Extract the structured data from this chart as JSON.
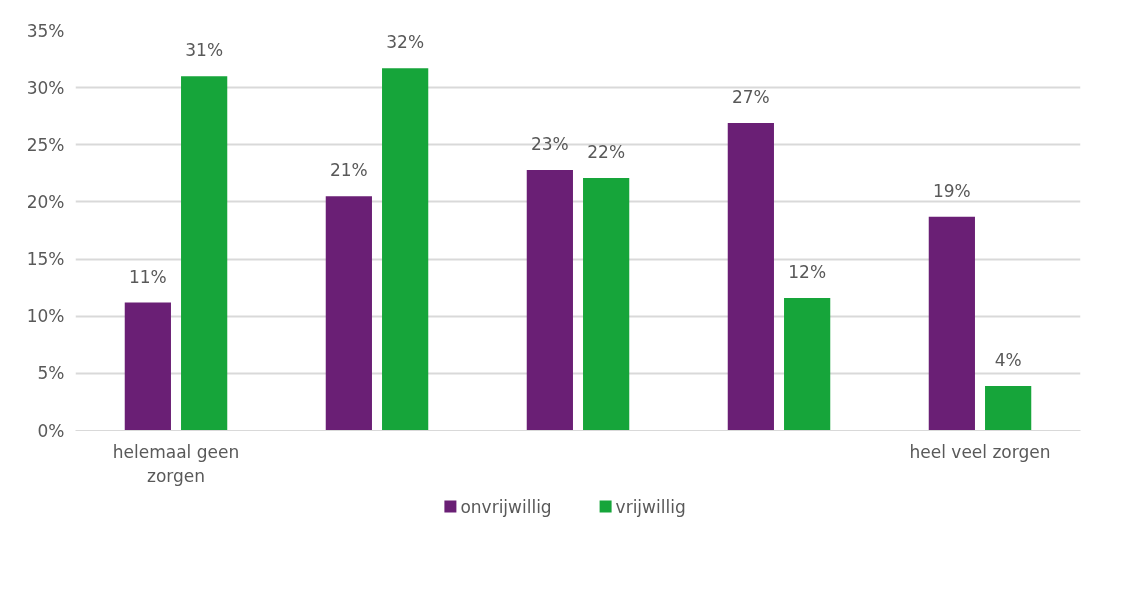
{
  "chart_data": {
    "type": "bar",
    "categories": [
      "helemaal geen zorgen",
      null,
      null,
      null,
      "heel veel zorgen"
    ],
    "series": [
      {
        "name": "onvrijwillig",
        "color": "#6a1f75",
        "values": [
          11.2,
          20.5,
          22.8,
          26.9,
          18.7
        ],
        "value_labels": [
          "11%",
          "21%",
          "23%",
          "27%",
          "19%"
        ]
      },
      {
        "name": "vrijwillig",
        "color": "#16a53a",
        "values": [
          31.0,
          31.7,
          22.1,
          11.6,
          3.9
        ],
        "value_labels": [
          "31%",
          "32%",
          "22%",
          "12%",
          "4%"
        ]
      }
    ],
    "ylim": [
      0,
      35
    ],
    "yticks": [
      {
        "value": 0,
        "label": "0%"
      },
      {
        "value": 5,
        "label": "5%"
      },
      {
        "value": 10,
        "label": "10%"
      },
      {
        "value": 15,
        "label": "15%"
      },
      {
        "value": 20,
        "label": "20%"
      },
      {
        "value": 25,
        "label": "25%"
      },
      {
        "value": 30,
        "label": "30%"
      },
      {
        "value": 35,
        "label": "35%"
      }
    ],
    "grid": "y",
    "legend": "bottom"
  }
}
